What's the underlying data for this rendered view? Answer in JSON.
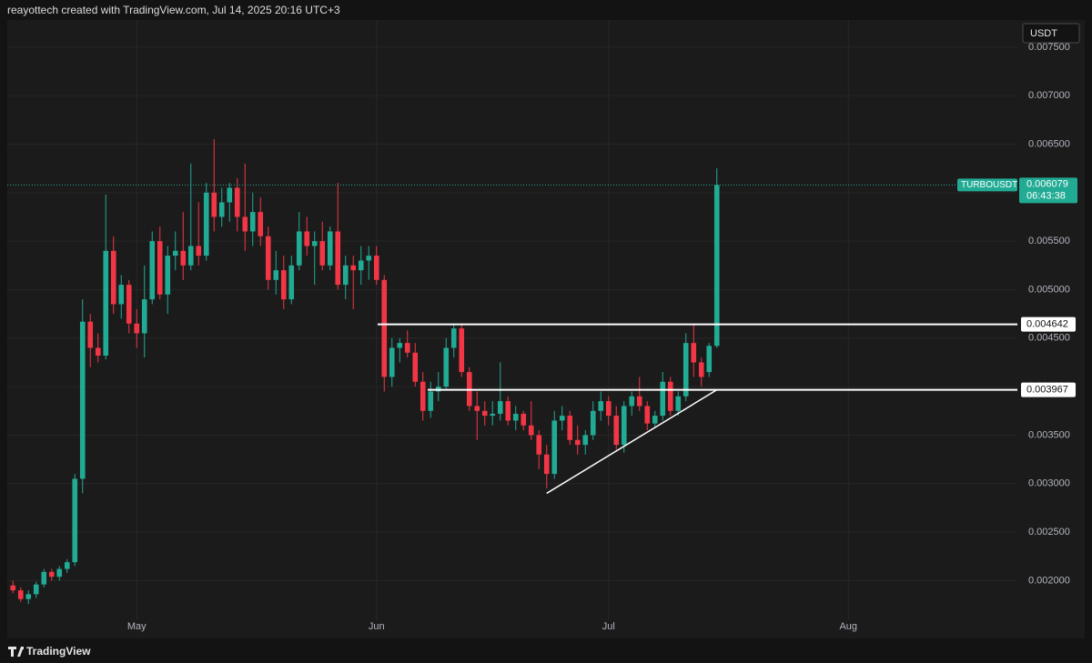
{
  "chart_data": {
    "type": "candlestick",
    "title": "reayottech created with TradingView.com, Jul 14, 2025 20:16 UTC+3",
    "currency": "USDT",
    "symbol": "TURBOUSDT",
    "countdown": "06:43:38",
    "brand": "TradingView",
    "up_color": "#22ab94",
    "down_color": "#f23645",
    "grid": true,
    "ylim": [
      0.00161,
      0.00778
    ],
    "yticks": [
      {
        "value": 0.002,
        "label": "0.002000"
      },
      {
        "value": 0.0025,
        "label": "0.002500"
      },
      {
        "value": 0.003,
        "label": "0.003000"
      },
      {
        "value": 0.0035,
        "label": "0.003500"
      },
      {
        "value": 0.004,
        "label": "0.004000"
      },
      {
        "value": 0.0045,
        "label": "0.004500"
      },
      {
        "value": 0.005,
        "label": "0.005000"
      },
      {
        "value": 0.0055,
        "label": "0.005500"
      },
      {
        "value": 0.006,
        "label": "0.006000"
      },
      {
        "value": 0.0065,
        "label": "0.006500"
      },
      {
        "value": 0.007,
        "label": "0.007000"
      },
      {
        "value": 0.0075,
        "label": "0.007500"
      }
    ],
    "levels": [
      0.004642,
      0.003967
    ],
    "trendline": {
      "x": [
        69,
        91
      ],
      "y": [
        0.0029,
        0.003967
      ]
    },
    "categories": [
      null,
      null,
      null,
      null,
      null,
      null,
      null,
      null,
      null,
      null,
      null,
      null,
      null,
      null,
      null,
      null,
      "May",
      null,
      null,
      null,
      null,
      null,
      null,
      null,
      null,
      null,
      null,
      null,
      null,
      null,
      null,
      null,
      null,
      null,
      null,
      null,
      null,
      null,
      null,
      null,
      null,
      null,
      null,
      null,
      null,
      null,
      null,
      "Jun",
      null,
      null,
      null,
      null,
      null,
      null,
      null,
      null,
      null,
      null,
      null,
      null,
      null,
      null,
      null,
      null,
      null,
      null,
      null,
      null,
      null,
      null,
      null,
      null,
      null,
      null,
      null,
      null,
      null,
      "Jul",
      null,
      null,
      null,
      null,
      null,
      null,
      null,
      null,
      null,
      null,
      null,
      null,
      null,
      null,
      null,
      null,
      null,
      null,
      null,
      null,
      null,
      null,
      null,
      null,
      null,
      null,
      null,
      null,
      null,
      null,
      "Aug",
      null,
      null,
      null,
      null,
      null,
      null,
      null,
      null,
      null,
      null,
      null,
      null,
      null,
      null,
      null,
      null,
      null,
      null,
      null,
      null,
      null
    ],
    "ohlc": {
      "open": [
        0.00195,
        0.0019,
        0.00181,
        0.00186,
        0.00196,
        0.00209,
        0.00204,
        0.00212,
        0.00219,
        0.00305,
        0.00467,
        0.0044,
        0.00432,
        0.0054,
        0.00485,
        0.00505,
        0.00465,
        0.00455,
        0.0049,
        0.0055,
        0.00495,
        0.00535,
        0.0054,
        0.00525,
        0.00545,
        0.00535,
        0.006,
        0.00575,
        0.0059,
        0.00605,
        0.00575,
        0.0056,
        0.0058,
        0.00555,
        0.0051,
        0.0052,
        0.0049,
        0.00525,
        0.0056,
        0.00545,
        0.0055,
        0.00525,
        0.0056,
        0.00505,
        0.00525,
        0.0052,
        0.0053,
        0.00535,
        0.0051,
        0.0041,
        0.0044,
        0.00445,
        0.00435,
        0.00405,
        0.00375,
        0.00395,
        0.004,
        0.0044,
        0.0046,
        0.00415,
        0.0038,
        0.00375,
        0.0037,
        0.00372,
        0.00385,
        0.00365,
        0.00372,
        0.0036,
        0.0035,
        0.0033,
        0.0031,
        0.00365,
        0.0037,
        0.00345,
        0.0034,
        0.0035,
        0.00375,
        0.00385,
        0.0037,
        0.0034,
        0.0038,
        0.0039,
        0.0038,
        0.00362,
        0.0037,
        0.00405,
        0.00375,
        0.0039,
        0.00445,
        0.00425,
        0.00415,
        0.00442,
        null,
        null,
        null,
        null,
        null,
        null,
        null,
        null,
        null,
        null,
        null,
        null,
        null,
        null,
        null,
        null,
        null,
        null,
        null,
        null,
        null,
        null,
        null,
        null,
        null,
        null,
        null,
        null,
        null,
        null,
        null,
        null,
        null,
        null,
        null,
        null,
        null,
        null
      ],
      "high": [
        0.002,
        0.00193,
        0.0019,
        0.00199,
        0.00212,
        0.00212,
        0.00215,
        0.00222,
        0.0031,
        0.0049,
        0.00475,
        0.00455,
        0.00598,
        0.00555,
        0.00515,
        0.0051,
        0.0048,
        0.00525,
        0.0056,
        0.00565,
        0.00545,
        0.0056,
        0.0058,
        0.0063,
        0.0059,
        0.0061,
        0.00655,
        0.00605,
        0.0061,
        0.00615,
        0.0063,
        0.006,
        0.00595,
        0.00565,
        0.0054,
        0.00535,
        0.00535,
        0.0058,
        0.00575,
        0.0056,
        0.0057,
        0.00565,
        0.0061,
        0.00535,
        0.00535,
        0.00545,
        0.00545,
        0.00545,
        0.00515,
        0.0045,
        0.0045,
        0.00458,
        0.00445,
        0.00415,
        0.00405,
        0.00415,
        0.0045,
        0.00465,
        0.00465,
        0.0042,
        0.00395,
        0.00385,
        0.00385,
        0.00425,
        0.0039,
        0.0038,
        0.00375,
        0.00385,
        0.00355,
        0.0034,
        0.00375,
        0.0038,
        0.00375,
        0.0036,
        0.00355,
        0.00385,
        0.00395,
        0.0039,
        0.0038,
        0.00385,
        0.00395,
        0.0041,
        0.00385,
        0.00375,
        0.00415,
        0.0041,
        0.00395,
        0.00455,
        0.00465,
        0.0043,
        0.00445,
        0.00625,
        null,
        null,
        null,
        null,
        null,
        null,
        null,
        null,
        null,
        null,
        null,
        null,
        null,
        null,
        null,
        null,
        null,
        null,
        null,
        null,
        null,
        null,
        null,
        null,
        null,
        null,
        null,
        null,
        null,
        null,
        null,
        null,
        null,
        null,
        null,
        null,
        null,
        null
      ],
      "low": [
        0.00187,
        0.00178,
        0.00176,
        0.00182,
        0.00193,
        0.002,
        0.002,
        0.00208,
        0.00215,
        0.0029,
        0.0042,
        0.00425,
        0.00428,
        0.00475,
        0.0047,
        0.00455,
        0.0044,
        0.0043,
        0.00485,
        0.0049,
        0.00475,
        0.0052,
        0.0051,
        0.0052,
        0.00525,
        0.0053,
        0.0056,
        0.00565,
        0.0057,
        0.0056,
        0.0054,
        0.00545,
        0.00545,
        0.005,
        0.00495,
        0.0048,
        0.00485,
        0.0052,
        0.00535,
        0.00505,
        0.0052,
        0.0052,
        0.005,
        0.0049,
        0.0048,
        0.00505,
        0.0051,
        0.00505,
        0.00395,
        0.004,
        0.00425,
        0.0043,
        0.004,
        0.00365,
        0.00368,
        0.00385,
        0.00398,
        0.0043,
        0.0041,
        0.00375,
        0.00345,
        0.0036,
        0.0036,
        0.00365,
        0.0036,
        0.00355,
        0.00355,
        0.00345,
        0.00315,
        0.00295,
        0.00305,
        0.00355,
        0.0034,
        0.0033,
        0.0033,
        0.00345,
        0.00365,
        0.0036,
        0.00335,
        0.00332,
        0.0037,
        0.00375,
        0.00355,
        0.00358,
        0.00365,
        0.0037,
        0.0037,
        0.00385,
        0.0041,
        0.004,
        0.0041,
        0.0044,
        null,
        null,
        null,
        null,
        null,
        null,
        null,
        null,
        null,
        null,
        null,
        null,
        null,
        null,
        null,
        null,
        null,
        null,
        null,
        null,
        null,
        null,
        null,
        null,
        null,
        null,
        null,
        null,
        null,
        null,
        null,
        null,
        null,
        null,
        null,
        null,
        null,
        null
      ],
      "close": [
        0.0019,
        0.00181,
        0.00186,
        0.00196,
        0.00209,
        0.00204,
        0.00212,
        0.00219,
        0.00305,
        0.00467,
        0.0044,
        0.00432,
        0.0054,
        0.00485,
        0.00505,
        0.00465,
        0.00455,
        0.0049,
        0.0055,
        0.00495,
        0.00535,
        0.0054,
        0.00525,
        0.00545,
        0.00535,
        0.006,
        0.00575,
        0.0059,
        0.00605,
        0.00575,
        0.0056,
        0.0058,
        0.00555,
        0.0051,
        0.0052,
        0.0049,
        0.00525,
        0.0056,
        0.00545,
        0.0055,
        0.00525,
        0.0056,
        0.00505,
        0.00525,
        0.0052,
        0.0053,
        0.00535,
        0.0051,
        0.0041,
        0.0044,
        0.00445,
        0.00435,
        0.00405,
        0.00375,
        0.00395,
        0.004,
        0.0044,
        0.0046,
        0.00415,
        0.0038,
        0.00375,
        0.0037,
        0.00372,
        0.00385,
        0.00365,
        0.00372,
        0.0036,
        0.0035,
        0.0033,
        0.0031,
        0.00365,
        0.0037,
        0.00345,
        0.0034,
        0.0035,
        0.00375,
        0.00385,
        0.0037,
        0.0034,
        0.0038,
        0.0039,
        0.0038,
        0.00362,
        0.0037,
        0.00405,
        0.00375,
        0.0039,
        0.00445,
        0.00425,
        0.0041,
        0.00442,
        0.006079,
        null,
        null,
        null,
        null,
        null,
        null,
        null,
        null,
        null,
        null,
        null,
        null,
        null,
        null,
        null,
        null,
        null,
        null,
        null,
        null,
        null,
        null,
        null,
        null,
        null,
        null,
        null,
        null,
        null,
        null,
        null,
        null,
        null,
        null,
        null,
        null,
        null,
        null
      ]
    }
  }
}
